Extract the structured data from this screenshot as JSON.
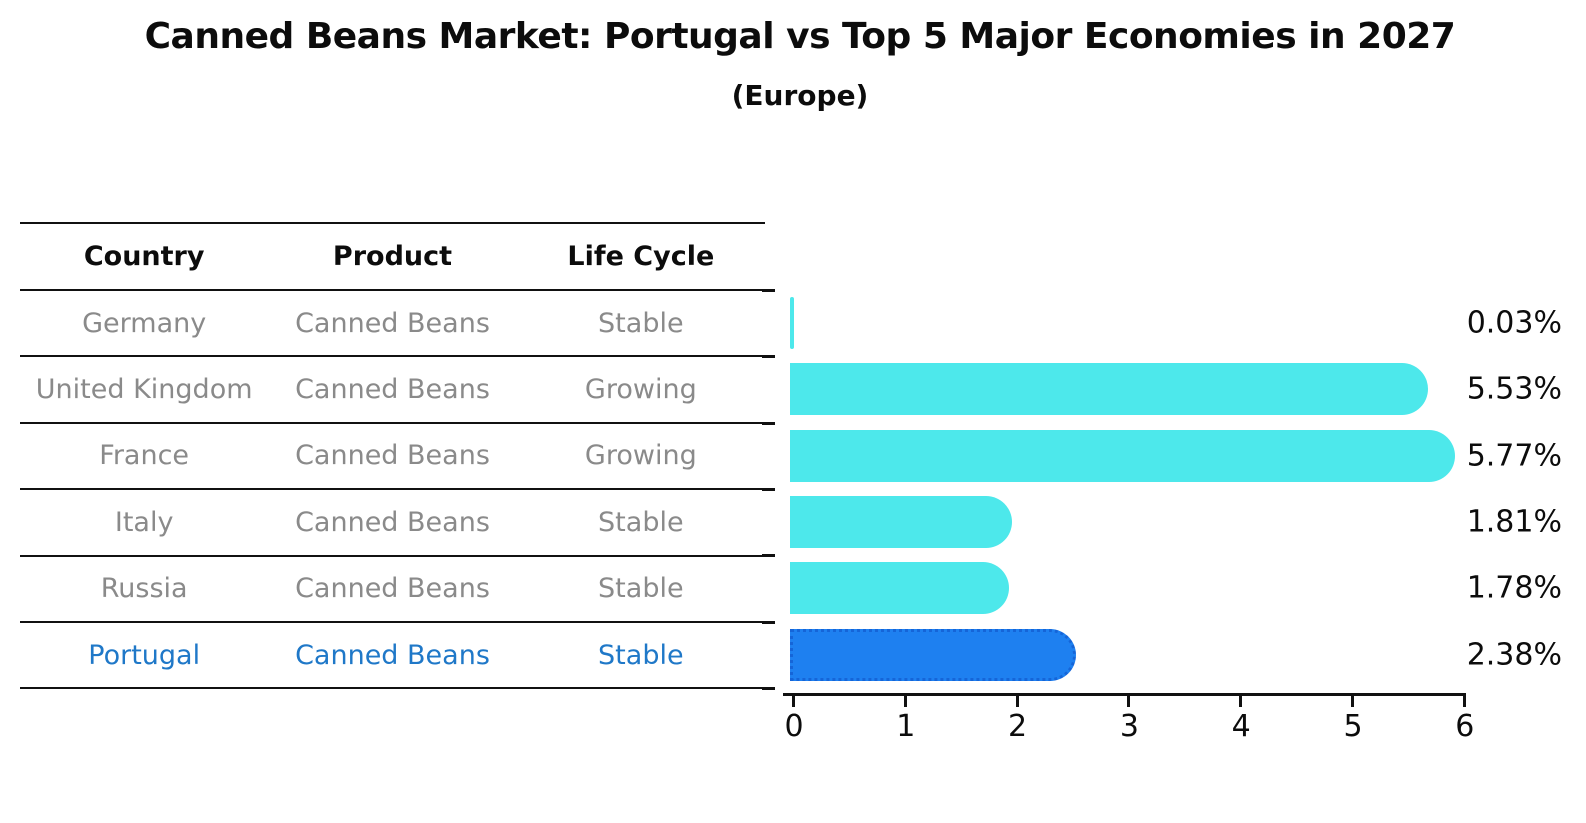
{
  "chart_data": {
    "type": "bar",
    "orientation": "horizontal",
    "title": "Canned Beans Market: Portugal vs Top 5 Major Economies in 2027",
    "subtitle": "(Europe)",
    "categories": [
      "Germany",
      "United Kingdom",
      "France",
      "Italy",
      "Russia",
      "Portugal"
    ],
    "values": [
      0.03,
      5.53,
      5.77,
      1.81,
      1.78,
      2.38
    ],
    "value_labels": [
      "0.03%",
      "5.53%",
      "5.77%",
      "1.81%",
      "1.78%",
      "2.38%"
    ],
    "xlim": [
      0,
      6
    ],
    "xticks": [
      "0",
      "1",
      "2",
      "3",
      "4",
      "5",
      "6"
    ],
    "grid": false,
    "legend": "none",
    "bar_color": "#4DE8EB",
    "highlight_bar_color": "#1E80F0",
    "highlight_border_color": "#1565D8",
    "highlight_index": 5
  },
  "table": {
    "headers": [
      "Country",
      "Product",
      "Life Cycle"
    ],
    "rows": [
      {
        "country": "Germany",
        "product": "Canned Beans",
        "life_cycle": "Stable"
      },
      {
        "country": "United Kingdom",
        "product": "Canned Beans",
        "life_cycle": "Growing"
      },
      {
        "country": "France",
        "product": "Canned Beans",
        "life_cycle": "Growing"
      },
      {
        "country": "Italy",
        "product": "Canned Beans",
        "life_cycle": "Stable"
      },
      {
        "country": "Russia",
        "product": "Canned Beans",
        "life_cycle": "Stable"
      },
      {
        "country": "Portugal",
        "product": "Canned Beans",
        "life_cycle": "Stable"
      }
    ]
  },
  "colors": {
    "muted_text": "#8A8A8A",
    "accent_text": "#1F78C8",
    "axis": "#111111"
  }
}
